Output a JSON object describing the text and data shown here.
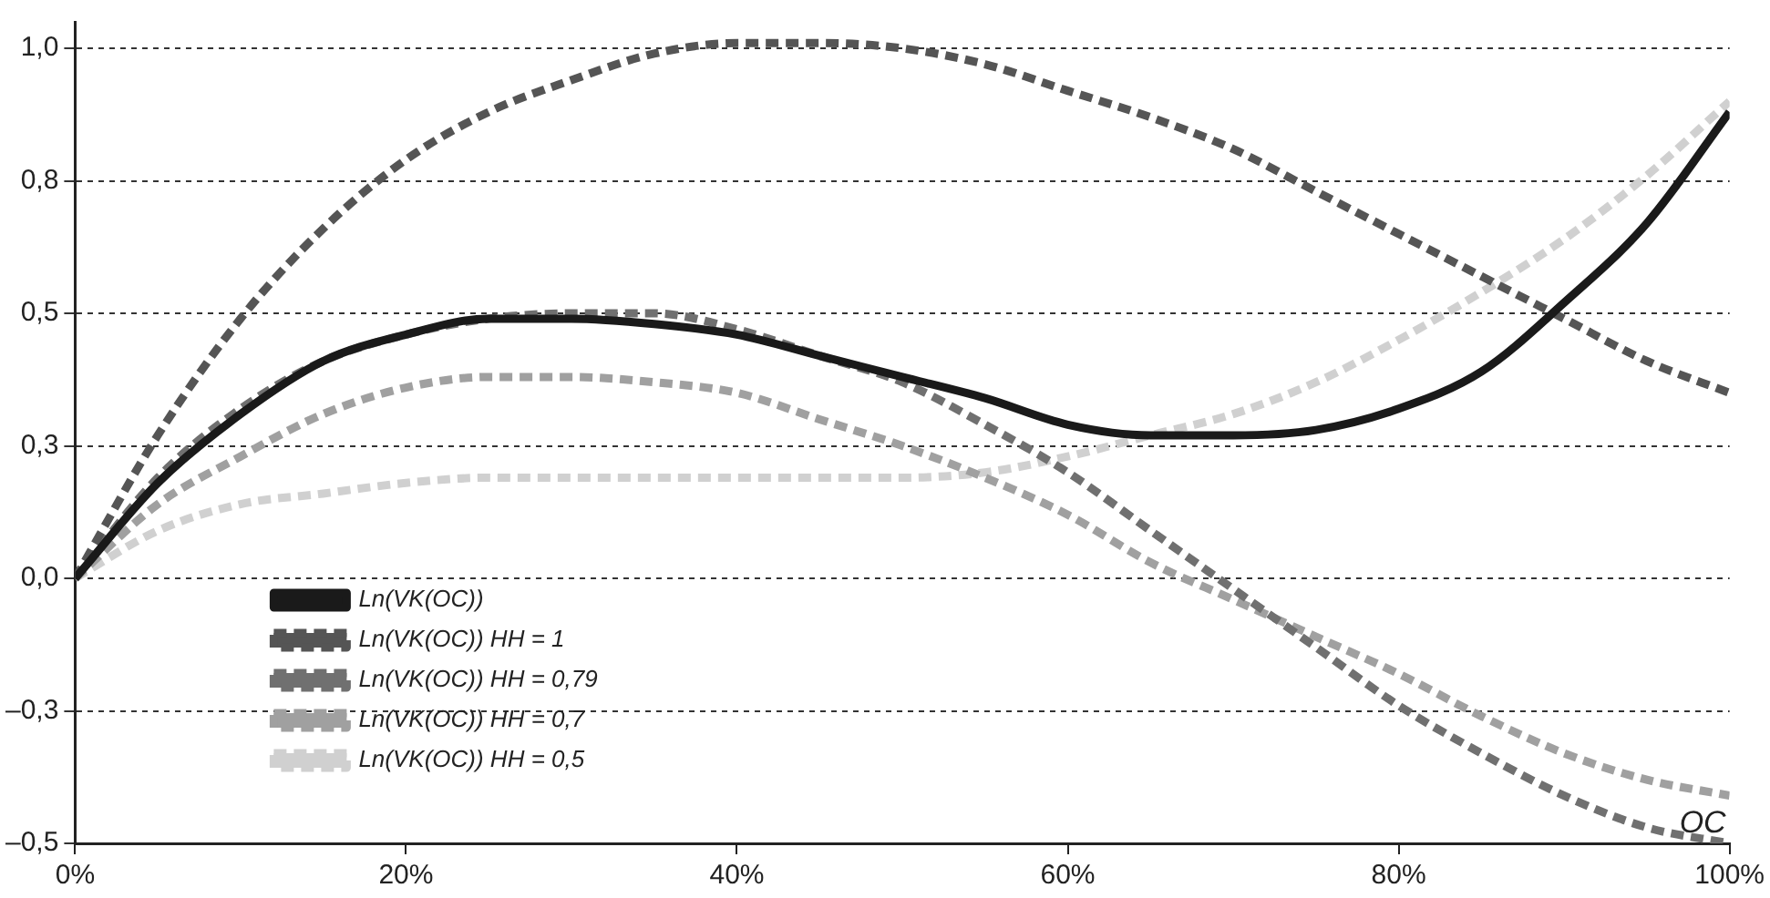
{
  "chart_data": {
    "type": "line",
    "xlabel": "OC",
    "x": [
      0,
      5,
      10,
      15,
      20,
      25,
      30,
      35,
      40,
      45,
      50,
      55,
      60,
      65,
      70,
      75,
      80,
      85,
      90,
      95,
      100
    ],
    "xlim": [
      0,
      100
    ],
    "xticks": [
      {
        "value": 0,
        "label": "0%"
      },
      {
        "value": 20,
        "label": "20%"
      },
      {
        "value": 40,
        "label": "40%"
      },
      {
        "value": 60,
        "label": "60%"
      },
      {
        "value": 80,
        "label": "80%"
      },
      {
        "value": 100,
        "label": "100%"
      }
    ],
    "ylim": [
      -0.5,
      1.05
    ],
    "yticks": [
      {
        "value": -0.5,
        "label": "–0,5"
      },
      {
        "value": -0.25,
        "label": "–0,3"
      },
      {
        "value": 0,
        "label": "0,0"
      },
      {
        "value": 0.25,
        "label": "0,3"
      },
      {
        "value": 0.5,
        "label": "0,5"
      },
      {
        "value": 0.75,
        "label": "0,8"
      },
      {
        "value": 1,
        "label": "1,0"
      }
    ],
    "grid": "y",
    "legend": "bottom left",
    "marker": "none",
    "series": [
      {
        "name": "Ln(VK(OC))",
        "color": "#1a1a1a",
        "line_style": "solid",
        "values": [
          0,
          0.18,
          0.31,
          0.41,
          0.46,
          0.49,
          0.49,
          0.48,
          0.46,
          0.42,
          0.38,
          0.34,
          0.29,
          0.27,
          0.27,
          0.28,
          0.32,
          0.39,
          0.52,
          0.67,
          0.88
        ]
      },
      {
        "name": "Ln(VK(OC)) HH = 1",
        "color": "#555555",
        "line_style": "dashed",
        "values": [
          0,
          0.27,
          0.49,
          0.66,
          0.79,
          0.88,
          0.94,
          0.99,
          1.01,
          1.01,
          1.0,
          0.97,
          0.92,
          0.87,
          0.81,
          0.73,
          0.65,
          0.57,
          0.49,
          0.41,
          0.35
        ]
      },
      {
        "name": "Ln(VK(OC)) HH = 0,79",
        "color": "#707070",
        "line_style": "dashed",
        "values": [
          0,
          0.19,
          0.32,
          0.41,
          0.46,
          0.49,
          0.5,
          0.5,
          0.47,
          0.42,
          0.37,
          0.29,
          0.2,
          0.09,
          -0.02,
          -0.13,
          -0.24,
          -0.33,
          -0.41,
          -0.47,
          -0.5
        ]
      },
      {
        "name": "Ln(VK(OC)) HH = 0,7",
        "color": "#a0a0a0",
        "line_style": "dashed",
        "values": [
          0,
          0.14,
          0.23,
          0.31,
          0.36,
          0.38,
          0.38,
          0.37,
          0.35,
          0.3,
          0.25,
          0.19,
          0.12,
          0.03,
          -0.04,
          -0.11,
          -0.18,
          -0.26,
          -0.33,
          -0.38,
          -0.41
        ]
      },
      {
        "name": "Ln(VK(OC)) HH = 0,5",
        "color": "#d0d0d0",
        "line_style": "dashed",
        "values": [
          0,
          0.09,
          0.14,
          0.16,
          0.18,
          0.19,
          0.19,
          0.19,
          0.19,
          0.19,
          0.19,
          0.2,
          0.23,
          0.27,
          0.31,
          0.37,
          0.45,
          0.54,
          0.64,
          0.76,
          0.9
        ]
      }
    ]
  }
}
